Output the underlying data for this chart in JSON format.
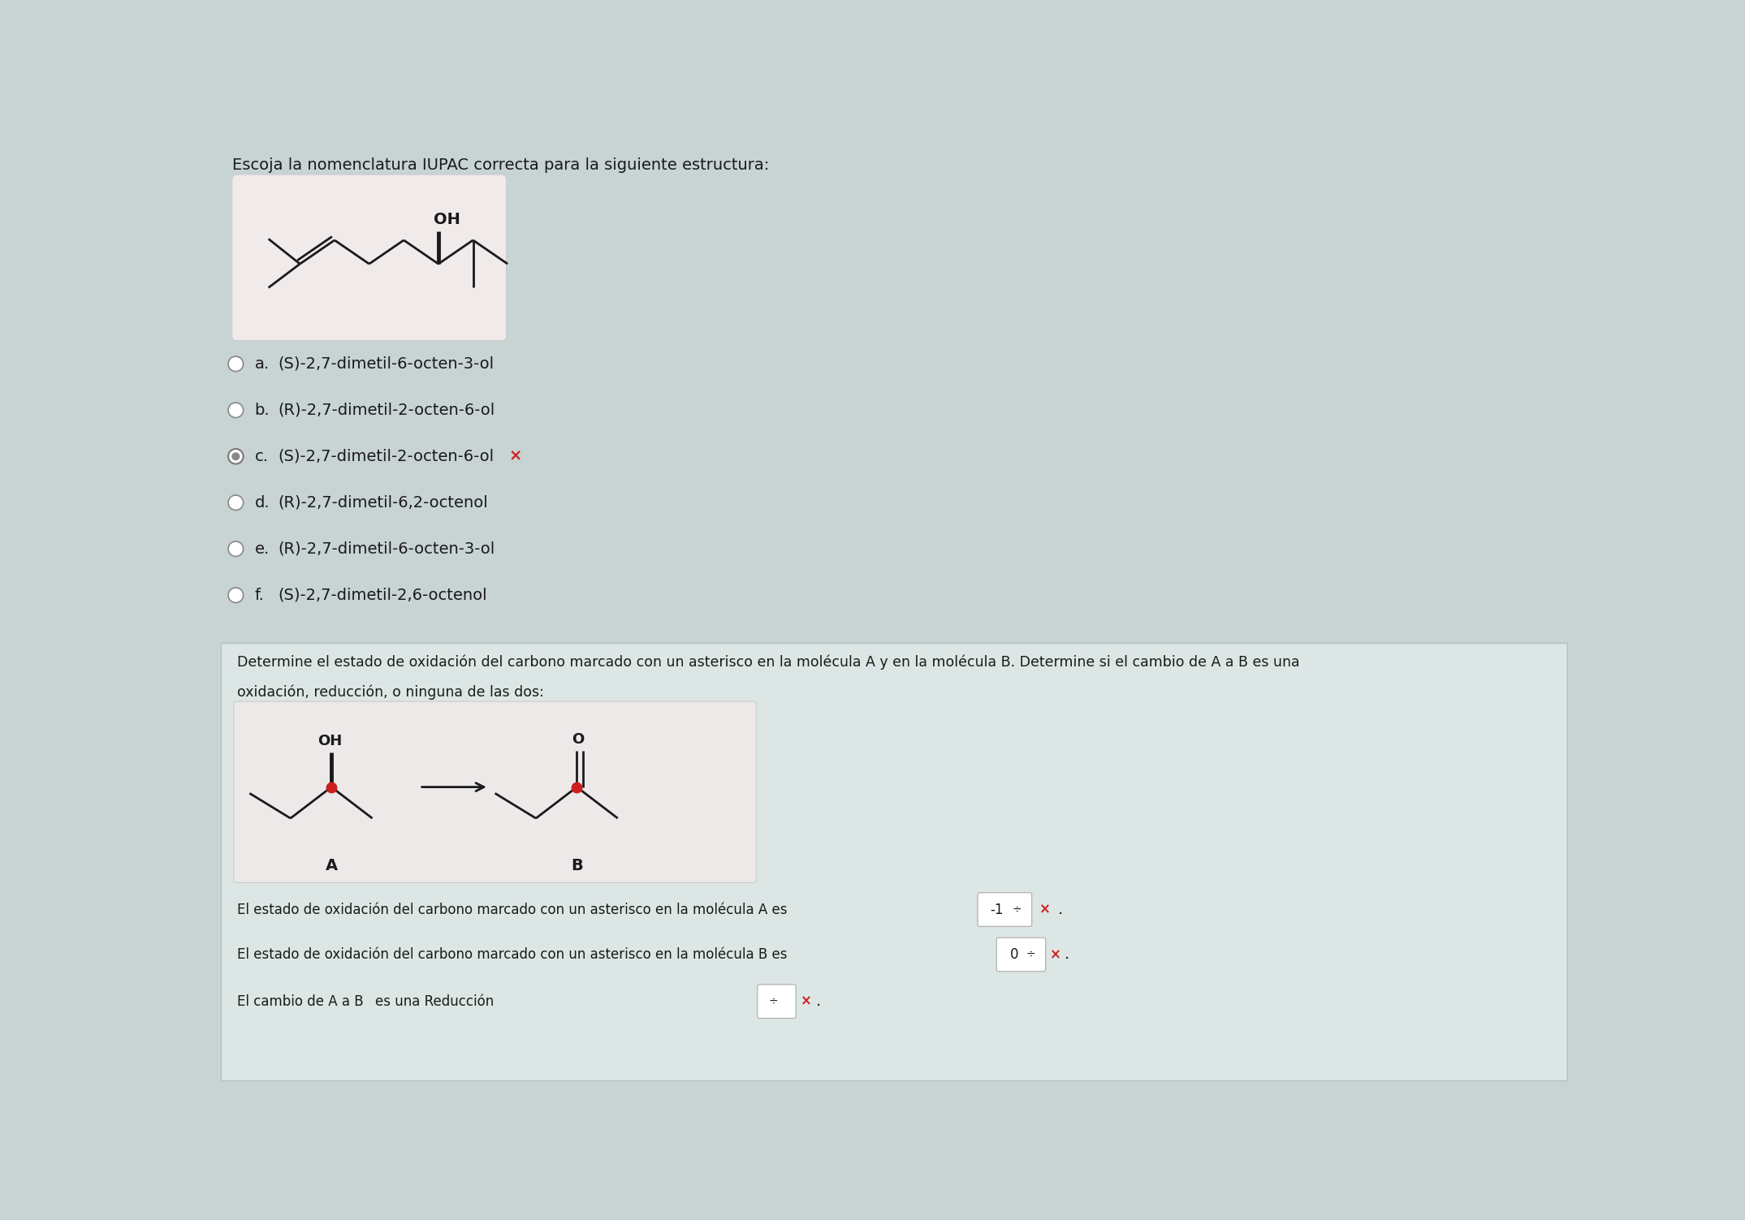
{
  "bg_top": "#c8d3d3",
  "bg_bottom": "#c8d3d3",
  "panel1_bg": "#f0eaea",
  "panel2_bg": "#dce6e5",
  "inner_box_bg": "#ede9e9",
  "title": "Escoja la nomenclatura IUPAC correcta para la siguiente estructura:",
  "options": [
    {
      "label": "a.",
      "text": "(S)-2,7-dimetil-6-octen-3-ol",
      "selected": false,
      "correct": null
    },
    {
      "label": "b.",
      "text": "(R)-2,7-dimetil-2-octen-6-ol",
      "selected": false,
      "correct": null
    },
    {
      "label": "c.",
      "text": "(S)-2,7-dimetil-2-octen-6-ol",
      "selected": true,
      "correct": false
    },
    {
      "label": "d.",
      "text": "(R)-2,7-dimetil-6,2-octenol",
      "selected": false,
      "correct": null
    },
    {
      "label": "e.",
      "text": "(R)-2,7-dimetil-6-octen-3-ol",
      "selected": false,
      "correct": null
    },
    {
      "label": "f.",
      "text": "(S)-2,7-dimetil-2,6-octenol",
      "selected": false,
      "correct": null
    }
  ],
  "section2_line1": "Determine el estado de oxidación del carbono marcado con un asterisco en la molécula A y en la molécula B. Determine si el cambio de A a B es una",
  "section2_line2": "oxidación, reducción, o ninguna de las dos:",
  "line1": "El estado de oxidación del carbono marcado con un asterisco en la molécula A es",
  "val1": "-1",
  "line2": "El estado de oxidación del carbono marcado con un asterisco en la molécula B es",
  "val2": "0",
  "line3_pre": "El cambio de A a B",
  "line3_val": "es una Reducción",
  "text_color": "#1a1a1a",
  "line_color": "#1a1a1a",
  "red_color": "#cc2020",
  "radio_empty_color": "#888888",
  "radio_filled_color": "#aaaaaa"
}
